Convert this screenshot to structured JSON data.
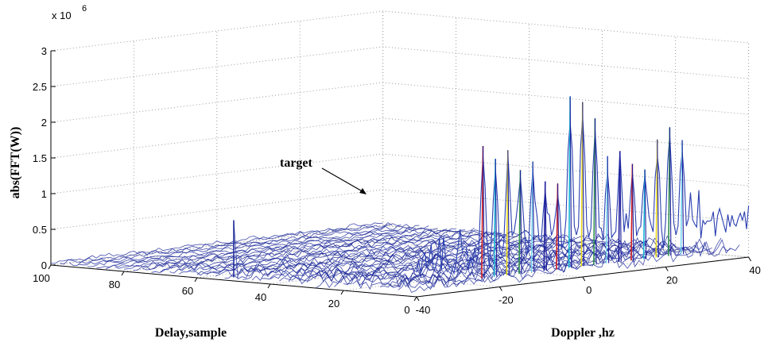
{
  "chart_data": {
    "type": "surface-3d",
    "zlabel": "abs(FFT(W))",
    "xlabel": "Delay,sample",
    "ylabel": "Doppler ,hz",
    "z_multiplier_label": "x 10",
    "z_multiplier_exponent": "6",
    "zlim": [
      0,
      3
    ],
    "z_ticks": [
      "0",
      "0.5",
      "1",
      "1.5",
      "2",
      "2.5",
      "3"
    ],
    "delay_lim": [
      0,
      100
    ],
    "delay_ticks": [
      "100",
      "80",
      "60",
      "40",
      "20",
      "0"
    ],
    "doppler_lim": [
      -40,
      40
    ],
    "doppler_ticks": [
      "-40",
      "-20",
      "0",
      "20",
      "40"
    ],
    "grid": true,
    "annotation": {
      "text": "target",
      "delay": 50,
      "doppler": -40,
      "z": 0.85
    },
    "noise_floor_z": 0.3,
    "ridge_delay": 0,
    "ridge_peaks": [
      {
        "doppler": -24,
        "z": 2.0
      },
      {
        "doppler": -21,
        "z": 1.8
      },
      {
        "doppler": -18,
        "z": 1.9
      },
      {
        "doppler": -15,
        "z": 1.6
      },
      {
        "doppler": -12,
        "z": 1.7
      },
      {
        "doppler": -9,
        "z": 1.4
      },
      {
        "doppler": -6,
        "z": 1.35
      },
      {
        "doppler": -3,
        "z": 2.55
      },
      {
        "doppler": 0,
        "z": 2.45
      },
      {
        "doppler": 3,
        "z": 2.2
      },
      {
        "doppler": 6,
        "z": 1.65
      },
      {
        "doppler": 9,
        "z": 1.7
      },
      {
        "doppler": 12,
        "z": 1.5
      },
      {
        "doppler": 15,
        "z": 1.4
      },
      {
        "doppler": 18,
        "z": 1.8
      },
      {
        "doppler": 21,
        "z": 1.95
      },
      {
        "doppler": 24,
        "z": 1.75
      }
    ]
  }
}
